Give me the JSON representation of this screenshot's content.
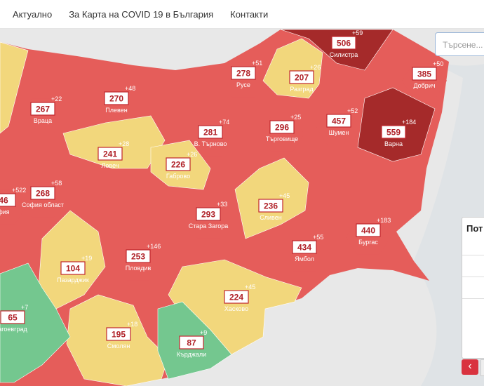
{
  "nav": {
    "items": [
      "Актуално",
      "За Карта на COVID 19 в България",
      "Контакти"
    ]
  },
  "search": {
    "placeholder": "Търсене..."
  },
  "panel": {
    "title": "Пот",
    "prev_button": "‹"
  },
  "map": {
    "regions": [
      {
        "name": "Враца",
        "value": 267,
        "change": "+22",
        "color": "#e55d5a"
      },
      {
        "name": "Плевен",
        "value": 270,
        "change": "+48",
        "color": "#e55d5a"
      },
      {
        "name": "Русе",
        "value": 278,
        "change": "+51",
        "color": "#e55d5a"
      },
      {
        "name": "Разград",
        "value": 207,
        "change": "+26",
        "color": "#f2d77c"
      },
      {
        "name": "Силистра",
        "value": 506,
        "change": "+59",
        "color": "#a52a2a"
      },
      {
        "name": "Добрич",
        "value": 385,
        "change": "+50",
        "color": "#e55d5a"
      },
      {
        "name": "Шумен",
        "value": 457,
        "change": "+52",
        "color": "#e55d5a"
      },
      {
        "name": "Варна",
        "value": 559,
        "change": "+184",
        "color": "#a52a2a"
      },
      {
        "name": "Търговище",
        "value": 296,
        "change": "+25",
        "color": "#e55d5a"
      },
      {
        "name": "В. Търново",
        "value": 281,
        "change": "+74",
        "color": "#e55d5a"
      },
      {
        "name": "Ловеч",
        "value": 241,
        "change": "+28",
        "color": "#f2d77c"
      },
      {
        "name": "Габрово",
        "value": 226,
        "change": "+26",
        "color": "#f2d77c"
      },
      {
        "name": "София област",
        "value": 268,
        "change": "+58",
        "color": "#e55d5a"
      },
      {
        "name": "фия",
        "value": 46,
        "change": "+522",
        "color": "#e55d5a"
      },
      {
        "name": "Сливен",
        "value": 236,
        "change": "+45",
        "color": "#f2d77c"
      },
      {
        "name": "Стара Загора",
        "value": 293,
        "change": "+33",
        "color": "#e55d5a"
      },
      {
        "name": "Ямбол",
        "value": 434,
        "change": "+55",
        "color": "#e55d5a"
      },
      {
        "name": "Бургас",
        "value": 440,
        "change": "+183",
        "color": "#e55d5a"
      },
      {
        "name": "Пловдив",
        "value": 253,
        "change": "+146",
        "color": "#e55d5a"
      },
      {
        "name": "Пазарджик",
        "value": 104,
        "change": "+19",
        "color": "#f2d77c"
      },
      {
        "name": "Хасково",
        "value": 224,
        "change": "+45",
        "color": "#f2d77c"
      },
      {
        "name": "Смолян",
        "value": 195,
        "change": "+18",
        "color": "#f2d77c"
      },
      {
        "name": "Кърджали",
        "value": 87,
        "change": "+9",
        "color": "#74c78f"
      },
      {
        "name": "агоевград",
        "value": 65,
        "change": "+7",
        "color": "#74c78f"
      }
    ]
  }
}
